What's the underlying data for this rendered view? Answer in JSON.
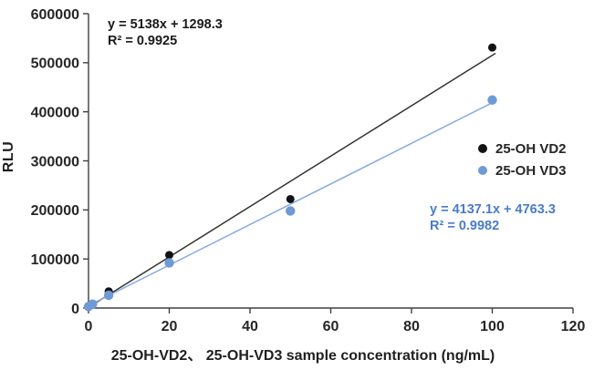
{
  "chart_data": {
    "type": "scatter",
    "title": "",
    "xlabel": "25-OH-VD2、 25-OH-VD3 sample concentration (ng/mL)",
    "ylabel": "RLU",
    "xlim": [
      0,
      120
    ],
    "ylim": [
      0,
      600000
    ],
    "x_ticks": [
      0,
      20,
      40,
      60,
      80,
      100,
      120
    ],
    "y_ticks": [
      0,
      100000,
      200000,
      300000,
      400000,
      500000,
      600000
    ],
    "grid": false,
    "axis_color": "#404040",
    "tick_label_color": "#262626",
    "legend_position": "middle-right",
    "series": [
      {
        "name": "25-OH VD2",
        "marker_color": "#131313",
        "trendline_color": "#333333",
        "marker_radius": 4.5,
        "x": [
          0,
          1,
          5,
          20,
          50,
          100
        ],
        "y": [
          2000,
          7000,
          34000,
          108000,
          222000,
          531000
        ],
        "trendline": {
          "slope": 5138,
          "intercept": 1298.3,
          "equation": "y = 5138x + 1298.3",
          "r_squared_label": "R² = 0.9925",
          "r_squared": 0.9925
        }
      },
      {
        "name": "25-OH VD3",
        "marker_color": "#6f9ad6",
        "trendline_color": "#85abdf",
        "marker_radius": 5.2,
        "x": [
          0,
          1,
          5,
          20,
          50,
          100
        ],
        "y": [
          3000,
          8000,
          26000,
          92000,
          198000,
          424000
        ],
        "trendline": {
          "slope": 4137.1,
          "intercept": 4763.3,
          "equation": "y = 4137.1x + 4763.3",
          "r_squared_label": "R² = 0.9982",
          "r_squared": 0.9982
        }
      }
    ],
    "annotations": [
      {
        "id": "vd2-equation",
        "line1": "y = 5138x + 1298.3",
        "line2": "R² = 0.9925",
        "color": "#1a1a1a"
      },
      {
        "id": "vd3-equation",
        "line1": "y = 4137.1x + 4763.3",
        "line2": "R² = 0.9982",
        "color": "#4a7cc5"
      }
    ],
    "legend": {
      "entries": [
        {
          "label": "25-OH VD2",
          "color": "#131313"
        },
        {
          "label": "25-OH VD3",
          "color": "#6f9ad6"
        }
      ]
    }
  }
}
